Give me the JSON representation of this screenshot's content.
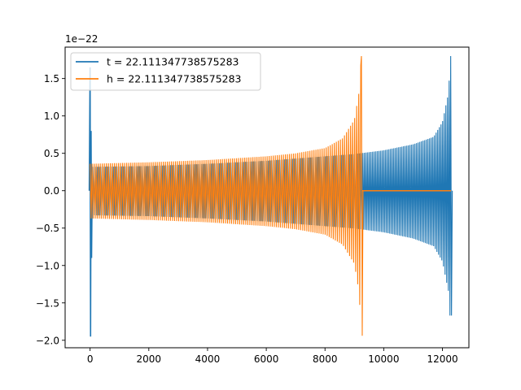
{
  "chart_data": {
    "type": "line",
    "title": "",
    "xlabel": "",
    "ylabel": "",
    "y_scale_label": "1e−22",
    "y_scale": 1e-22,
    "xlim": [
      -850,
      12900
    ],
    "ylim": [
      -2.1,
      1.92
    ],
    "x_ticks": [
      0,
      2000,
      4000,
      6000,
      8000,
      10000,
      12000
    ],
    "x_tick_labels": [
      "0",
      "2000",
      "4000",
      "6000",
      "8000",
      "10000",
      "12000"
    ],
    "y_ticks": [
      -2.0,
      -1.5,
      -1.0,
      -0.5,
      0.0,
      0.5,
      1.0,
      1.5
    ],
    "y_tick_labels": [
      "−2.0",
      "−1.5",
      "−1.0",
      "−0.5",
      "0.0",
      "0.5",
      "1.0",
      "1.5"
    ],
    "grid": false,
    "legend_position": "top-left",
    "series": [
      {
        "name": "t = 22.111347738575283",
        "color": "#1f77b4",
        "description_points": {
          "x_range": [
            0,
            12290
          ],
          "initial_spike": {
            "x": 0,
            "y_max": 1.65,
            "y_min": -1.95
          },
          "envelope": [
            {
              "x": 200,
              "amp": 0.32
            },
            {
              "x": 2000,
              "amp": 0.33
            },
            {
              "x": 4000,
              "amp": 0.36
            },
            {
              "x": 6000,
              "amp": 0.4
            },
            {
              "x": 8000,
              "amp": 0.46
            },
            {
              "x": 9000,
              "amp": 0.49
            },
            {
              "x": 10000,
              "amp": 0.54
            },
            {
              "x": 11000,
              "amp": 0.62
            },
            {
              "x": 11700,
              "amp": 0.72
            },
            {
              "x": 12000,
              "amp": 0.92
            },
            {
              "x": 12200,
              "amp": 1.3
            },
            {
              "x": 12280,
              "amp": 1.8
            }
          ],
          "final_min": -1.67
        }
      },
      {
        "name": "h = 22.111347738575283",
        "color": "#ff7f0e",
        "description_points": {
          "x_range": [
            0,
            12290
          ],
          "envelope": [
            {
              "x": 0,
              "amp": 0.36
            },
            {
              "x": 2000,
              "amp": 0.38
            },
            {
              "x": 4000,
              "amp": 0.41
            },
            {
              "x": 6000,
              "amp": 0.46
            },
            {
              "x": 7000,
              "amp": 0.5
            },
            {
              "x": 8000,
              "amp": 0.57
            },
            {
              "x": 8600,
              "amp": 0.7
            },
            {
              "x": 9000,
              "amp": 0.95
            },
            {
              "x": 9150,
              "amp": 1.3
            },
            {
              "x": 9240,
              "amp": 1.8
            }
          ],
          "final_min": -1.94,
          "merger_x": 9260,
          "flat_after": 0.0
        }
      }
    ]
  }
}
